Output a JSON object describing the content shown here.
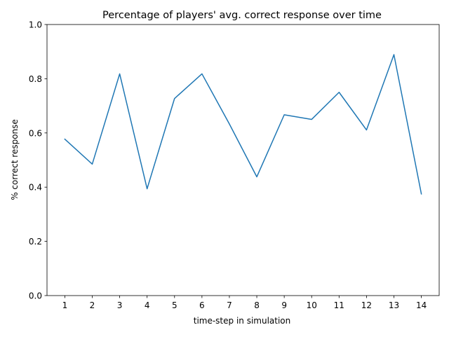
{
  "chart_data": {
    "type": "line",
    "title": "Percentage of players' avg. correct response over time",
    "xlabel": "time-step in simulation",
    "ylabel": "% correct response",
    "x": [
      1,
      2,
      3,
      4,
      5,
      6,
      7,
      8,
      9,
      10,
      11,
      12,
      13,
      14
    ],
    "series": [
      {
        "values": [
          0.577,
          0.485,
          0.818,
          0.394,
          0.727,
          0.818,
          0.633,
          0.438,
          0.667,
          0.65,
          0.75,
          0.611,
          0.889,
          0.375
        ],
        "color": "#1f77b4"
      }
    ],
    "xticks": [
      "1",
      "2",
      "3",
      "4",
      "5",
      "6",
      "7",
      "8",
      "9",
      "10",
      "11",
      "12",
      "13",
      "14"
    ],
    "yticks": [
      "0.0",
      "0.2",
      "0.4",
      "0.6",
      "0.8",
      "1.0"
    ],
    "xlim": [
      0.35,
      14.65
    ],
    "ylim": [
      0,
      1
    ],
    "grid": false,
    "legend": "none"
  }
}
